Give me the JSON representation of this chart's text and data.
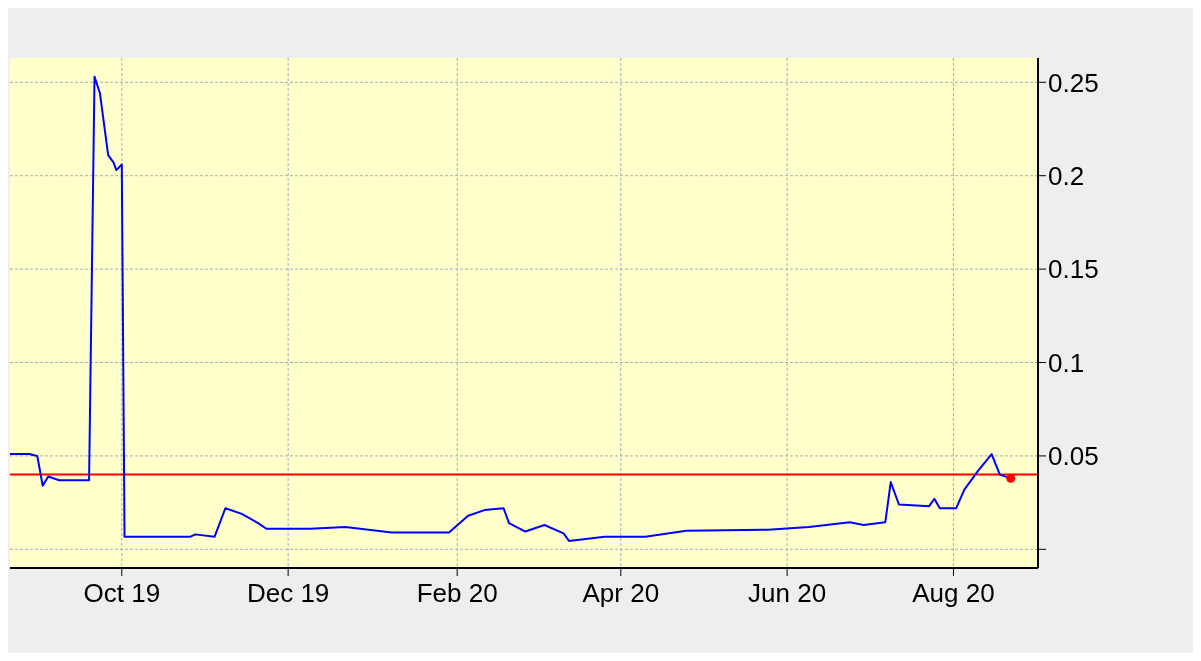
{
  "chart_data": {
    "type": "line",
    "xlim": [
      "2019-08-21",
      "2020-09-01"
    ],
    "xticks": [
      {
        "value": "2019-10-01",
        "label": "Oct 19"
      },
      {
        "value": "2019-12-01",
        "label": "Dec 19"
      },
      {
        "value": "2020-02-01",
        "label": "Feb 20"
      },
      {
        "value": "2020-04-01",
        "label": "Apr 20"
      },
      {
        "value": "2020-06-01",
        "label": "Jun 20"
      },
      {
        "value": "2020-08-01",
        "label": "Aug 20"
      }
    ],
    "ylim": [
      -0.01,
      0.263
    ],
    "yticks": [
      {
        "value": 0,
        "label": null
      },
      0.05,
      0.1,
      0.15,
      0.2,
      0.25
    ],
    "grid": true,
    "ref_lines": [
      {
        "axis": "y",
        "value": 0.04,
        "color": "#ff0000"
      }
    ],
    "series": [
      {
        "color": "#0000ff",
        "x": [
          "2019-08-21",
          "2019-08-28",
          "2019-08-31",
          "2019-09-02",
          "2019-09-04",
          "2019-09-08",
          "2019-09-19",
          "2019-09-21",
          "2019-09-23",
          "2019-09-26",
          "2019-09-28",
          "2019-09-29",
          "2019-10-01",
          "2019-10-02",
          "2019-10-26",
          "2019-10-28",
          "2019-11-04",
          "2019-11-08",
          "2019-11-14",
          "2019-11-20",
          "2019-11-23",
          "2019-12-09",
          "2019-12-22",
          "2020-01-08",
          "2020-01-29",
          "2020-02-05",
          "2020-02-11",
          "2020-02-18",
          "2020-02-20",
          "2020-02-26",
          "2020-03-04",
          "2020-03-11",
          "2020-03-13",
          "2020-03-26",
          "2020-04-10",
          "2020-04-25",
          "2020-05-25",
          "2020-06-09",
          "2020-06-24",
          "2020-06-29",
          "2020-07-07",
          "2020-07-09",
          "2020-07-12",
          "2020-07-23",
          "2020-07-25",
          "2020-07-27",
          "2020-08-02",
          "2020-08-05",
          "2020-08-10",
          "2020-08-15",
          "2020-08-18",
          "2020-08-22"
        ],
        "values": [
          0.051,
          0.051,
          0.05,
          0.034,
          0.039,
          0.037,
          0.037,
          0.253,
          0.244,
          0.211,
          0.207,
          0.203,
          0.206,
          0.0067,
          0.0067,
          0.008,
          0.0067,
          0.022,
          0.019,
          0.014,
          0.011,
          0.011,
          0.012,
          0.009,
          0.009,
          0.018,
          0.021,
          0.022,
          0.014,
          0.0095,
          0.013,
          0.0085,
          0.0045,
          0.0067,
          0.0067,
          0.01,
          0.0105,
          0.012,
          0.0145,
          0.013,
          0.0145,
          0.036,
          0.024,
          0.023,
          0.027,
          0.022,
          0.022,
          0.032,
          0.042,
          0.051,
          0.04,
          0.038
        ]
      },
      {
        "type": "scatter",
        "color": "#ff0000",
        "x": [
          "2020-08-22"
        ],
        "values": [
          0.038
        ]
      }
    ]
  }
}
